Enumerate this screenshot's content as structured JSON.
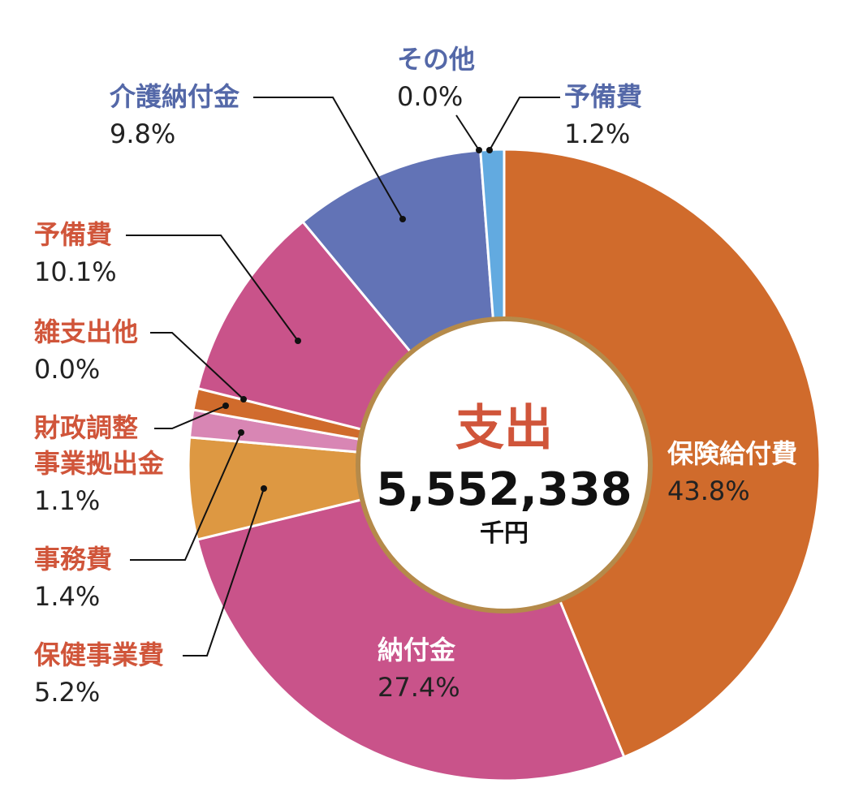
{
  "chart_data": {
    "type": "pie",
    "variant": "donut",
    "center": {
      "title": "支出",
      "value": "5,552,338",
      "unit": "千円"
    },
    "slices": [
      {
        "label": "保険給付費",
        "label2": "",
        "value": 43.8,
        "pct": "43.8%",
        "color": "#d06b2c",
        "label_color": "#ffffff"
      },
      {
        "label": "納付金",
        "label2": "",
        "value": 27.4,
        "pct": "27.4%",
        "color": "#c9538a",
        "label_color": "#ffffff"
      },
      {
        "label": "保健事業費",
        "label2": "",
        "value": 5.2,
        "pct": "5.2%",
        "color": "#dd9842",
        "label_color": "#d0553a"
      },
      {
        "label": "事務費",
        "label2": "",
        "value": 1.4,
        "pct": "1.4%",
        "color": "#d886b4",
        "label_color": "#d0553a"
      },
      {
        "label": "財政調整",
        "label2": "事業拠出金",
        "value": 1.1,
        "pct": "1.1%",
        "color": "#d06b2c",
        "label_color": "#d0553a"
      },
      {
        "label": "雑支出他",
        "label2": "",
        "value": 0.0,
        "pct": "0.0%",
        "color": "#d06b2c",
        "label_color": "#d0553a"
      },
      {
        "label": "予備費",
        "label2": "",
        "value": 10.1,
        "pct": "10.1%",
        "color": "#c9538a",
        "label_color": "#d0553a"
      },
      {
        "label": "介護納付金",
        "label2": "",
        "value": 9.8,
        "pct": "9.8%",
        "color": "#6273b6",
        "label_color": "#5468a8"
      },
      {
        "label": "その他",
        "label2": "",
        "value": 0.0,
        "pct": "0.0%",
        "color": "#6273b6",
        "label_color": "#5468a8"
      },
      {
        "label": "予備費",
        "label2": "",
        "value": 1.2,
        "pct": "1.2%",
        "color": "#62aae0",
        "label_color": "#5468a8"
      }
    ],
    "title_color": "#d0553a",
    "ring_border_color": "#b58a4a"
  }
}
